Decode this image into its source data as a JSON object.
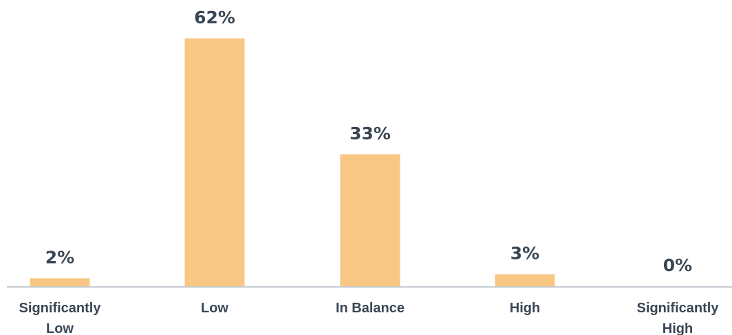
{
  "chart_data": {
    "type": "bar",
    "title": "",
    "xlabel": "",
    "ylabel": "",
    "categories": [
      [
        "Significantly",
        "Low"
      ],
      [
        "Low"
      ],
      [
        "In Balance"
      ],
      [
        "High"
      ],
      [
        "Significantly",
        "High"
      ]
    ],
    "values": [
      2,
      62,
      33,
      3,
      0
    ],
    "data_labels": [
      "2%",
      "62%",
      "33%",
      "3%",
      "0%"
    ],
    "ylim": [
      0,
      62
    ],
    "grid": false,
    "legend": "none",
    "colors": {
      "bar": "#F8C784",
      "text": "#3A4653",
      "axis": "#C8CDD3"
    }
  }
}
